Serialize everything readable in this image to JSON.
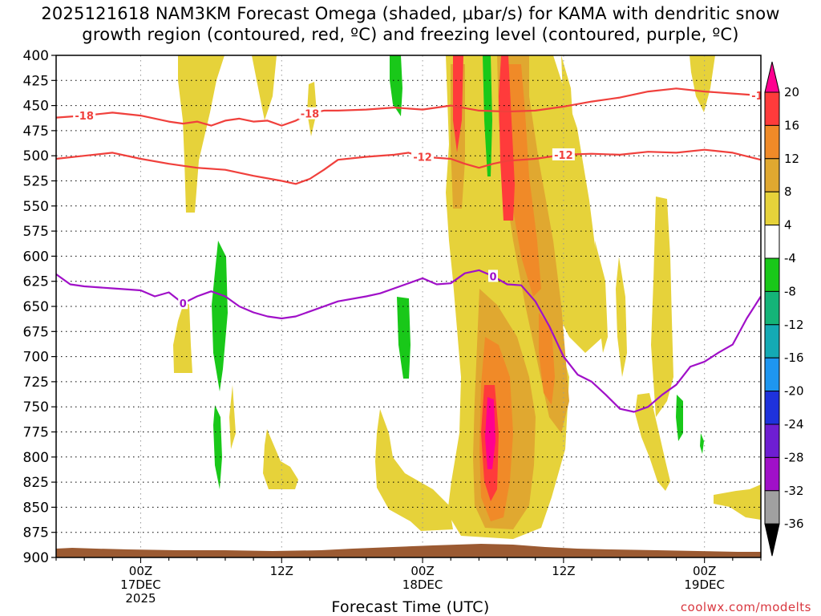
{
  "chart_data": {
    "type": "time-height",
    "title_line1": "2025121618 NAM3KM Forecast Omega (shaded, μbar/s) for KAMA with dendritic snow",
    "title_line2": "growth region (contoured, red, ºC) and freezing level (contoured, purple, ºC)",
    "xlabel": "Forecast Time (UTC)",
    "credit": "coolwx.com/modelts",
    "xlim_hours": [
      -6,
      44
    ],
    "ylim_hPa": [
      400,
      900
    ],
    "y_ticks": [
      "400",
      "425",
      "450",
      "475",
      "500",
      "525",
      "550",
      "575",
      "600",
      "625",
      "650",
      "675",
      "700",
      "725",
      "750",
      "775",
      "800",
      "825",
      "850",
      "875",
      "900"
    ],
    "x_ticks": [
      {
        "hour": 0,
        "lines": [
          "00Z",
          "17DEC",
          "2025"
        ]
      },
      {
        "hour": 10,
        "lines": [
          "12Z"
        ]
      },
      {
        "hour": 20,
        "lines": [
          "00Z",
          "18DEC"
        ]
      },
      {
        "hour": 30,
        "lines": [
          "12Z"
        ]
      },
      {
        "hour": 40,
        "lines": [
          "00Z",
          "19DEC"
        ]
      }
    ],
    "colorbar": {
      "levels": [
        "20",
        "16",
        "12",
        "8",
        "4",
        "-4",
        "-8",
        "-12",
        "-16",
        "-20",
        "-24",
        "-28",
        "-32",
        "-36"
      ],
      "colors": [
        "#ff0090",
        "#ff3b3b",
        "#f08a28",
        "#e0a830",
        "#e6d23a",
        "#ffffff",
        "#19c819",
        "#14b478",
        "#14aab4",
        "#1e96f0",
        "#1e32dc",
        "#6e1ed2",
        "#a010c8",
        "#a0a0a0",
        "#000000"
      ]
    },
    "series": [
      {
        "name": "-18C isotherm",
        "color": "#f0403c",
        "label": "-18",
        "points": [
          [
            -6,
            462
          ],
          [
            -4,
            460
          ],
          [
            -2,
            457
          ],
          [
            0,
            460
          ],
          [
            2,
            466
          ],
          [
            3,
            468
          ],
          [
            4,
            466
          ],
          [
            5,
            470
          ],
          [
            6,
            465
          ],
          [
            7,
            463
          ],
          [
            8,
            466
          ],
          [
            9,
            465
          ],
          [
            10,
            470
          ],
          [
            11,
            465
          ],
          [
            12,
            458
          ],
          [
            13,
            455
          ],
          [
            14,
            455
          ],
          [
            16,
            454
          ],
          [
            18,
            452
          ],
          [
            20,
            454
          ],
          [
            22,
            450
          ],
          [
            24,
            455
          ],
          [
            26,
            456
          ],
          [
            28,
            455
          ],
          [
            30,
            451
          ],
          [
            32,
            446
          ],
          [
            34,
            442
          ],
          [
            36,
            436
          ],
          [
            38,
            433
          ],
          [
            40,
            436
          ],
          [
            42,
            438
          ],
          [
            44,
            440
          ]
        ]
      },
      {
        "name": "-12C isotherm",
        "color": "#f0403c",
        "label": "-12",
        "points": [
          [
            -6,
            503
          ],
          [
            -4,
            500
          ],
          [
            -2,
            497
          ],
          [
            0,
            503
          ],
          [
            2,
            508
          ],
          [
            4,
            512
          ],
          [
            6,
            514
          ],
          [
            8,
            520
          ],
          [
            10,
            525
          ],
          [
            11,
            528
          ],
          [
            12,
            523
          ],
          [
            13,
            514
          ],
          [
            14,
            504
          ],
          [
            16,
            501
          ],
          [
            18,
            499
          ],
          [
            19,
            497
          ],
          [
            20,
            501
          ],
          [
            22,
            503
          ],
          [
            23,
            508
          ],
          [
            24,
            512
          ],
          [
            25,
            508
          ],
          [
            26,
            505
          ],
          [
            28,
            503
          ],
          [
            30,
            499
          ],
          [
            32,
            498
          ],
          [
            34,
            499
          ],
          [
            36,
            496
          ],
          [
            38,
            497
          ],
          [
            40,
            494
          ],
          [
            42,
            497
          ],
          [
            44,
            504
          ]
        ]
      },
      {
        "name": "0C freezing level",
        "color": "#a010c8",
        "label": "0",
        "points": [
          [
            -6,
            618
          ],
          [
            -5,
            628
          ],
          [
            -4,
            630
          ],
          [
            -2,
            632
          ],
          [
            0,
            634
          ],
          [
            1,
            640
          ],
          [
            2,
            636
          ],
          [
            3,
            647
          ],
          [
            4,
            640
          ],
          [
            5,
            635
          ],
          [
            6,
            640
          ],
          [
            7,
            650
          ],
          [
            8,
            656
          ],
          [
            9,
            660
          ],
          [
            10,
            662
          ],
          [
            11,
            660
          ],
          [
            12,
            655
          ],
          [
            14,
            645
          ],
          [
            16,
            640
          ],
          [
            17,
            637
          ],
          [
            19,
            627
          ],
          [
            20,
            622
          ],
          [
            21,
            628
          ],
          [
            22,
            627
          ],
          [
            23,
            617
          ],
          [
            24,
            614
          ],
          [
            25,
            620
          ],
          [
            26,
            628
          ],
          [
            27,
            629
          ],
          [
            28,
            645
          ],
          [
            29,
            670
          ],
          [
            30,
            700
          ],
          [
            31,
            718
          ],
          [
            32,
            725
          ],
          [
            33,
            738
          ],
          [
            34,
            752
          ],
          [
            35,
            755
          ],
          [
            36,
            750
          ],
          [
            37,
            738
          ],
          [
            38,
            728
          ],
          [
            39,
            710
          ],
          [
            40,
            705
          ],
          [
            41,
            696
          ],
          [
            42,
            688
          ],
          [
            43,
            662
          ],
          [
            44,
            640
          ]
        ]
      }
    ]
  }
}
